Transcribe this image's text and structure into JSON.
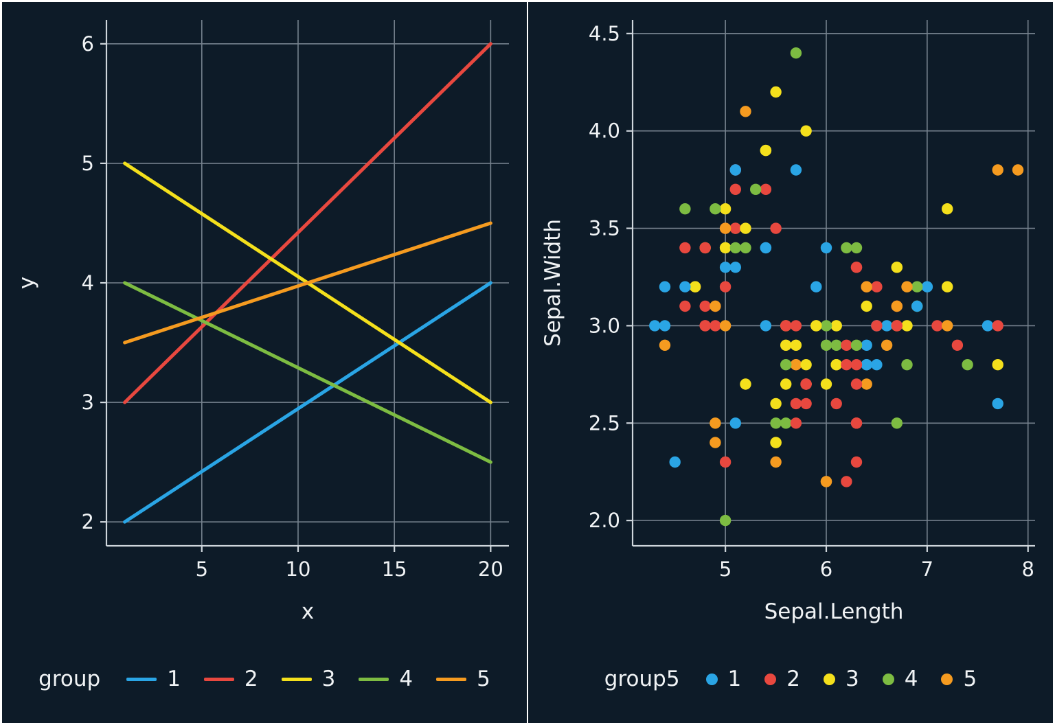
{
  "theme": {
    "background": "#0d1b28",
    "grid": "#76828e",
    "axis": "#cfd6dc",
    "text": "#f0f3f5",
    "frame": "#ffffff"
  },
  "palette": {
    "1": "#2aa5e5",
    "2": "#e8483f",
    "3": "#f4e01c",
    "4": "#7dbc42",
    "5": "#f59b20"
  },
  "chart_data": [
    {
      "type": "line",
      "title": "",
      "xlabel": "x",
      "ylabel": "y",
      "xlim": [
        0.05,
        20.95
      ],
      "ylim": [
        1.8,
        6.2
      ],
      "grid": true,
      "xticks": [
        {
          "v": 5,
          "label": "5"
        },
        {
          "v": 10,
          "label": "10"
        },
        {
          "v": 15,
          "label": "15"
        },
        {
          "v": 20,
          "label": "20"
        }
      ],
      "yticks": [
        {
          "v": 2,
          "label": "2"
        },
        {
          "v": 3,
          "label": "3"
        },
        {
          "v": 4,
          "label": "4"
        },
        {
          "v": 5,
          "label": "5"
        },
        {
          "v": 6,
          "label": "6"
        }
      ],
      "legend": {
        "title": "group",
        "position": "bottom",
        "items": [
          {
            "label": "1",
            "g": 1
          },
          {
            "label": "2",
            "g": 2
          },
          {
            "label": "3",
            "g": 3
          },
          {
            "label": "4",
            "g": 4
          },
          {
            "label": "5",
            "g": 5
          }
        ]
      },
      "series": [
        {
          "name": "1",
          "g": 1,
          "points": [
            [
              1,
              2
            ],
            [
              20,
              4
            ]
          ]
        },
        {
          "name": "2",
          "g": 2,
          "points": [
            [
              1,
              3
            ],
            [
              20,
              6
            ]
          ]
        },
        {
          "name": "3",
          "g": 3,
          "points": [
            [
              1,
              5
            ],
            [
              20,
              3
            ]
          ]
        },
        {
          "name": "4",
          "g": 4,
          "points": [
            [
              1,
              4
            ],
            [
              20,
              2.5
            ]
          ]
        },
        {
          "name": "5",
          "g": 5,
          "points": [
            [
              1,
              3.5
            ],
            [
              20,
              4.5
            ]
          ]
        }
      ]
    },
    {
      "type": "scatter",
      "title": "",
      "xlabel": "Sepal.Length",
      "ylabel": "Sepal.Width",
      "xlim": [
        4.08,
        8.07
      ],
      "ylim": [
        1.87,
        4.57
      ],
      "grid": true,
      "xticks": [
        {
          "v": 5,
          "label": "5"
        },
        {
          "v": 6,
          "label": "6"
        },
        {
          "v": 7,
          "label": "7"
        },
        {
          "v": 8,
          "label": "8"
        }
      ],
      "yticks": [
        {
          "v": 2,
          "label": "2.0"
        },
        {
          "v": 2.5,
          "label": "2.5"
        },
        {
          "v": 3,
          "label": "3.0"
        },
        {
          "v": 3.5,
          "label": "3.5"
        },
        {
          "v": 4,
          "label": "4.0"
        },
        {
          "v": 4.5,
          "label": "4.5"
        }
      ],
      "legend": {
        "title": "group5",
        "position": "bottom",
        "items": [
          {
            "label": "1",
            "g": 1
          },
          {
            "label": "2",
            "g": 2
          },
          {
            "label": "3",
            "g": 3
          },
          {
            "label": "4",
            "g": 4
          },
          {
            "label": "5",
            "g": 5
          }
        ]
      },
      "points": [
        [
          5.1,
          3.5,
          5
        ],
        [
          4.9,
          3.0,
          2
        ],
        [
          4.7,
          3.2,
          5
        ],
        [
          4.6,
          3.1,
          2
        ],
        [
          5.0,
          3.6,
          3
        ],
        [
          5.4,
          3.9,
          3
        ],
        [
          4.6,
          3.4,
          2
        ],
        [
          5.0,
          3.4,
          4
        ],
        [
          4.4,
          2.9,
          5
        ],
        [
          4.9,
          3.1,
          2
        ],
        [
          5.4,
          3.7,
          2
        ],
        [
          4.8,
          3.4,
          3
        ],
        [
          4.8,
          3.0,
          2
        ],
        [
          4.3,
          3.0,
          1
        ],
        [
          5.8,
          4.0,
          3
        ],
        [
          5.7,
          4.4,
          4
        ],
        [
          5.4,
          3.9,
          3
        ],
        [
          5.1,
          3.5,
          2
        ],
        [
          5.7,
          3.8,
          1
        ],
        [
          5.1,
          3.8,
          1
        ],
        [
          5.4,
          3.4,
          1
        ],
        [
          5.1,
          3.7,
          2
        ],
        [
          4.6,
          3.6,
          4
        ],
        [
          5.1,
          3.3,
          1
        ],
        [
          4.8,
          3.4,
          2
        ],
        [
          5.0,
          3.0,
          5
        ],
        [
          5.0,
          3.4,
          3
        ],
        [
          5.2,
          3.5,
          3
        ],
        [
          5.2,
          3.4,
          4
        ],
        [
          4.7,
          3.2,
          3
        ],
        [
          4.8,
          3.1,
          2
        ],
        [
          5.4,
          3.4,
          1
        ],
        [
          5.2,
          4.1,
          5
        ],
        [
          5.5,
          4.2,
          3
        ],
        [
          4.9,
          3.1,
          5
        ],
        [
          5.0,
          3.2,
          2
        ],
        [
          5.5,
          3.5,
          2
        ],
        [
          4.9,
          3.6,
          4
        ],
        [
          4.4,
          3.0,
          1
        ],
        [
          5.1,
          3.4,
          4
        ],
        [
          5.0,
          3.5,
          2
        ],
        [
          4.5,
          2.3,
          1
        ],
        [
          4.4,
          3.2,
          1
        ],
        [
          5.0,
          3.5,
          5
        ],
        [
          5.1,
          3.8,
          2
        ],
        [
          4.8,
          3.0,
          2
        ],
        [
          5.1,
          3.8,
          1
        ],
        [
          4.6,
          3.2,
          1
        ],
        [
          5.3,
          3.7,
          4
        ],
        [
          5.0,
          3.3,
          1
        ],
        [
          7.0,
          3.2,
          1
        ],
        [
          6.4,
          3.2,
          2
        ],
        [
          6.9,
          3.1,
          4
        ],
        [
          5.5,
          2.3,
          5
        ],
        [
          6.5,
          2.8,
          1
        ],
        [
          5.7,
          2.8,
          2
        ],
        [
          6.3,
          3.3,
          2
        ],
        [
          4.9,
          2.4,
          5
        ],
        [
          6.6,
          2.9,
          5
        ],
        [
          5.2,
          2.7,
          3
        ],
        [
          5.0,
          2.0,
          4
        ],
        [
          5.9,
          3.0,
          3
        ],
        [
          6.0,
          2.2,
          5
        ],
        [
          6.1,
          2.9,
          4
        ],
        [
          5.6,
          2.9,
          3
        ],
        [
          6.7,
          3.1,
          5
        ],
        [
          5.6,
          3.0,
          3
        ],
        [
          5.8,
          2.7,
          2
        ],
        [
          6.2,
          2.2,
          2
        ],
        [
          5.6,
          2.5,
          4
        ],
        [
          5.9,
          3.2,
          1
        ],
        [
          6.1,
          2.8,
          3
        ],
        [
          6.3,
          2.5,
          2
        ],
        [
          6.1,
          2.8,
          3
        ],
        [
          6.4,
          2.9,
          1
        ],
        [
          6.6,
          3.0,
          1
        ],
        [
          6.8,
          2.8,
          4
        ],
        [
          6.7,
          3.0,
          3
        ],
        [
          6.0,
          2.9,
          4
        ],
        [
          5.7,
          2.6,
          2
        ],
        [
          5.5,
          2.4,
          3
        ],
        [
          5.5,
          2.4,
          3
        ],
        [
          5.8,
          2.7,
          4
        ],
        [
          6.0,
          2.7,
          3
        ],
        [
          5.4,
          3.0,
          1
        ],
        [
          6.0,
          3.4,
          1
        ],
        [
          6.7,
          3.1,
          2
        ],
        [
          6.3,
          2.3,
          2
        ],
        [
          5.6,
          3.0,
          2
        ],
        [
          5.5,
          2.5,
          4
        ],
        [
          5.5,
          2.6,
          3
        ],
        [
          6.1,
          3.0,
          4
        ],
        [
          5.8,
          2.6,
          2
        ],
        [
          5.0,
          2.3,
          2
        ],
        [
          5.6,
          2.7,
          3
        ],
        [
          5.7,
          3.0,
          2
        ],
        [
          5.7,
          2.9,
          3
        ],
        [
          6.2,
          2.9,
          2
        ],
        [
          5.1,
          2.5,
          1
        ],
        [
          5.7,
          2.8,
          5
        ],
        [
          6.3,
          3.3,
          2
        ],
        [
          5.8,
          2.7,
          2
        ],
        [
          7.1,
          3.0,
          2
        ],
        [
          6.3,
          2.9,
          4
        ],
        [
          6.5,
          3.0,
          1
        ],
        [
          7.6,
          3.0,
          1
        ],
        [
          4.9,
          2.5,
          5
        ],
        [
          7.3,
          2.9,
          2
        ],
        [
          6.7,
          2.5,
          4
        ],
        [
          7.2,
          3.6,
          3
        ],
        [
          6.5,
          3.2,
          2
        ],
        [
          6.4,
          2.7,
          5
        ],
        [
          6.8,
          3.0,
          3
        ],
        [
          5.7,
          2.5,
          2
        ],
        [
          5.8,
          2.8,
          3
        ],
        [
          6.4,
          3.2,
          5
        ],
        [
          6.5,
          3.0,
          1
        ],
        [
          7.7,
          3.8,
          5
        ],
        [
          7.7,
          2.6,
          1
        ],
        [
          6.0,
          2.2,
          5
        ],
        [
          6.9,
          3.2,
          4
        ],
        [
          5.6,
          2.8,
          4
        ],
        [
          7.7,
          2.8,
          3
        ],
        [
          6.3,
          2.7,
          2
        ],
        [
          6.7,
          3.3,
          3
        ],
        [
          7.2,
          3.2,
          3
        ],
        [
          6.2,
          2.8,
          2
        ],
        [
          6.1,
          3.0,
          3
        ],
        [
          6.4,
          2.8,
          1
        ],
        [
          7.2,
          3.0,
          5
        ],
        [
          7.4,
          2.8,
          4
        ],
        [
          7.9,
          3.8,
          5
        ],
        [
          6.4,
          2.8,
          1
        ],
        [
          6.3,
          2.8,
          2
        ],
        [
          6.1,
          2.6,
          2
        ],
        [
          7.7,
          3.0,
          2
        ],
        [
          6.3,
          3.4,
          4
        ],
        [
          6.4,
          3.1,
          3
        ],
        [
          6.0,
          3.0,
          4
        ],
        [
          6.9,
          3.1,
          4
        ],
        [
          6.7,
          3.1,
          5
        ],
        [
          6.9,
          3.1,
          1
        ],
        [
          5.8,
          2.7,
          2
        ],
        [
          6.8,
          3.2,
          5
        ],
        [
          6.7,
          3.3,
          3
        ],
        [
          6.7,
          3.0,
          2
        ],
        [
          6.3,
          2.5,
          2
        ],
        [
          6.5,
          3.0,
          2
        ],
        [
          6.2,
          3.4,
          4
        ],
        [
          5.9,
          3.0,
          3
        ]
      ]
    }
  ]
}
